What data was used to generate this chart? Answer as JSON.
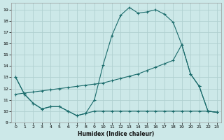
{
  "title": "",
  "xlabel": "Humidex (Indice chaleur)",
  "bg_color": "#cce8e8",
  "grid_color": "#b0d0d0",
  "line_color": "#1a6b6b",
  "xlim": [
    -0.5,
    23.5
  ],
  "ylim": [
    9,
    19.6
  ],
  "yticks": [
    9,
    10,
    11,
    12,
    13,
    14,
    15,
    16,
    17,
    18,
    19
  ],
  "xticks": [
    0,
    1,
    2,
    3,
    4,
    5,
    6,
    7,
    8,
    9,
    10,
    11,
    12,
    13,
    14,
    15,
    16,
    17,
    18,
    19,
    20,
    21,
    22,
    23
  ],
  "curve_x": [
    0,
    1,
    2,
    3,
    4,
    5,
    6,
    7,
    8,
    9,
    10,
    11,
    12,
    13,
    14,
    15,
    16,
    17,
    18,
    19,
    20,
    21,
    22,
    23
  ],
  "curve_y": [
    13.0,
    11.5,
    10.7,
    10.2,
    10.4,
    10.4,
    10.0,
    9.6,
    9.8,
    11.0,
    14.1,
    16.7,
    18.5,
    19.2,
    18.7,
    18.8,
    19.0,
    18.6,
    17.9,
    15.9,
    13.3,
    12.2,
    10.0,
    9.9
  ],
  "diag_x": [
    0,
    1,
    2,
    3,
    4,
    5,
    6,
    7,
    8,
    9,
    10,
    11,
    12,
    13,
    14,
    15,
    16,
    17,
    18,
    19,
    20,
    21,
    22,
    23
  ],
  "diag_y": [
    11.5,
    11.6,
    11.7,
    11.8,
    11.9,
    12.0,
    12.1,
    12.2,
    12.3,
    12.4,
    12.5,
    12.7,
    12.9,
    13.1,
    13.3,
    13.6,
    13.9,
    14.2,
    14.5,
    15.9,
    13.3,
    12.2,
    10.0,
    9.9
  ],
  "flat_x": [
    0,
    1,
    2,
    3,
    4,
    5,
    6,
    7,
    8,
    9,
    10,
    11,
    12,
    13,
    14,
    15,
    16,
    17,
    18,
    19,
    20,
    21,
    22,
    23
  ],
  "flat_y": [
    13.0,
    11.5,
    10.7,
    10.2,
    10.4,
    10.4,
    10.0,
    9.6,
    9.8,
    10.0,
    10.0,
    10.0,
    10.0,
    10.0,
    10.0,
    10.0,
    10.0,
    10.0,
    10.0,
    10.0,
    10.0,
    10.0,
    10.0,
    9.9
  ]
}
